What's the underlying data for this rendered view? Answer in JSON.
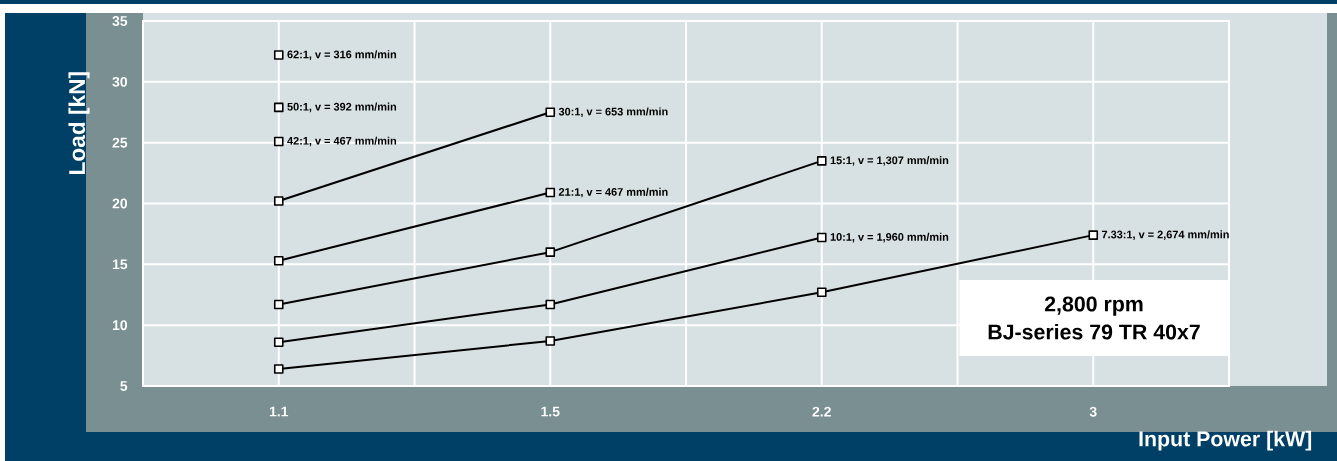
{
  "chart_data": {
    "type": "line",
    "xlabel": "Input Power [kW]",
    "ylabel": "Load [kN]",
    "categories": [
      "1.1",
      "1.5",
      "2.2",
      "3"
    ],
    "ylim": [
      5,
      35
    ],
    "yticks": [
      5,
      10,
      15,
      20,
      25,
      30,
      35
    ],
    "grid": true,
    "marker": "square",
    "line_style": "solid",
    "annotations": [
      "2,800 rpm",
      "BJ-series 79 TR 40x7"
    ],
    "series": [
      {
        "name": "62:1, v = 316 mm/min",
        "color": "#000000",
        "values": [
          32.2,
          null,
          null,
          null
        ]
      },
      {
        "name": "50:1, v = 392 mm/min",
        "color": "#000000",
        "values": [
          27.9,
          null,
          null,
          null
        ]
      },
      {
        "name": "42:1, v = 467 mm/min",
        "color": "#000000",
        "values": [
          25.1,
          null,
          null,
          null
        ]
      },
      {
        "name": "30:1, v = 653 mm/min",
        "color": "#000000",
        "values": [
          20.2,
          27.5,
          null,
          null
        ]
      },
      {
        "name": "21:1, v = 467 mm/min",
        "color": "#000000",
        "values": [
          15.3,
          20.9,
          null,
          null
        ]
      },
      {
        "name": "15:1, v = 1,307 mm/min",
        "color": "#000000",
        "values": [
          11.7,
          16.0,
          23.5,
          null
        ]
      },
      {
        "name": "10:1, v = 1,960 mm/min",
        "color": "#000000",
        "values": [
          8.6,
          11.7,
          17.2,
          null
        ]
      },
      {
        "name": "7.33:1, v = 2,674 mm/min",
        "color": "#000000",
        "values": [
          6.4,
          8.7,
          12.7,
          17.4
        ]
      }
    ]
  }
}
